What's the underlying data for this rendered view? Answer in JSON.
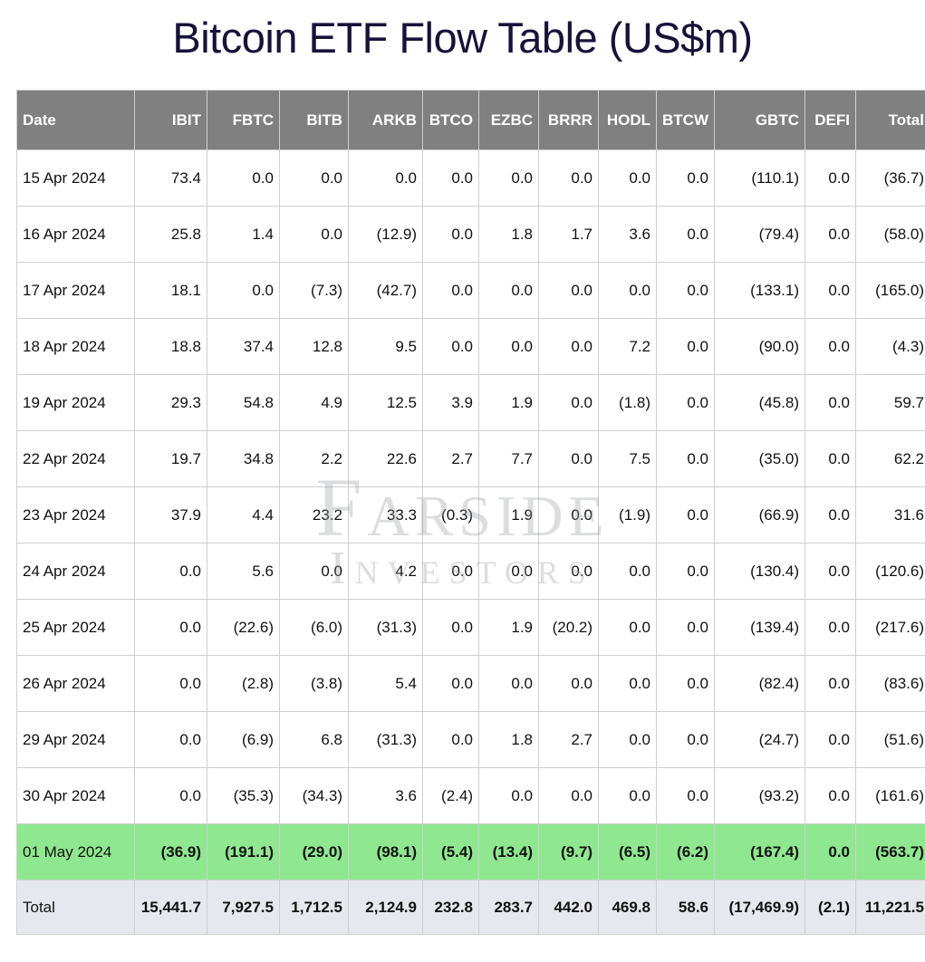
{
  "title": "Bitcoin ETF Flow Table (US$m)",
  "watermark": {
    "line1": "Farside",
    "line2": "Investors"
  },
  "table": {
    "type": "table",
    "header_bg": "#808080",
    "header_fg": "#ffffff",
    "border_color": "#cfcfcf",
    "negative_color": "#e03a2e",
    "highlight_bg": "#8fe88f",
    "total_bg": "#e7e8ed",
    "columns": [
      "Date",
      "IBIT",
      "FBTC",
      "BITB",
      "ARKB",
      "BTCO",
      "EZBC",
      "BRRR",
      "HODL",
      "BTCW",
      "GBTC",
      "DEFI",
      "Total"
    ],
    "rows": [
      {
        "date": "15 Apr 2024",
        "cells": [
          "73.4",
          "0.0",
          "0.0",
          "0.0",
          "0.0",
          "0.0",
          "0.0",
          "0.0",
          "0.0",
          "(110.1)",
          "0.0",
          "(36.7)"
        ]
      },
      {
        "date": "16 Apr 2024",
        "cells": [
          "25.8",
          "1.4",
          "0.0",
          "(12.9)",
          "0.0",
          "1.8",
          "1.7",
          "3.6",
          "0.0",
          "(79.4)",
          "0.0",
          "(58.0)"
        ]
      },
      {
        "date": "17 Apr 2024",
        "cells": [
          "18.1",
          "0.0",
          "(7.3)",
          "(42.7)",
          "0.0",
          "0.0",
          "0.0",
          "0.0",
          "0.0",
          "(133.1)",
          "0.0",
          "(165.0)"
        ]
      },
      {
        "date": "18 Apr 2024",
        "cells": [
          "18.8",
          "37.4",
          "12.8",
          "9.5",
          "0.0",
          "0.0",
          "0.0",
          "7.2",
          "0.0",
          "(90.0)",
          "0.0",
          "(4.3)"
        ]
      },
      {
        "date": "19 Apr 2024",
        "cells": [
          "29.3",
          "54.8",
          "4.9",
          "12.5",
          "3.9",
          "1.9",
          "0.0",
          "(1.8)",
          "0.0",
          "(45.8)",
          "0.0",
          "59.7"
        ]
      },
      {
        "date": "22 Apr 2024",
        "cells": [
          "19.7",
          "34.8",
          "2.2",
          "22.6",
          "2.7",
          "7.7",
          "0.0",
          "7.5",
          "0.0",
          "(35.0)",
          "0.0",
          "62.2"
        ]
      },
      {
        "date": "23 Apr 2024",
        "cells": [
          "37.9",
          "4.4",
          "23.2",
          "33.3",
          "(0.3)",
          "1.9",
          "0.0",
          "(1.9)",
          "0.0",
          "(66.9)",
          "0.0",
          "31.6"
        ]
      },
      {
        "date": "24 Apr 2024",
        "cells": [
          "0.0",
          "5.6",
          "0.0",
          "4.2",
          "0.0",
          "0.0",
          "0.0",
          "0.0",
          "0.0",
          "(130.4)",
          "0.0",
          "(120.6)"
        ]
      },
      {
        "date": "25 Apr 2024",
        "cells": [
          "0.0",
          "(22.6)",
          "(6.0)",
          "(31.3)",
          "0.0",
          "1.9",
          "(20.2)",
          "0.0",
          "0.0",
          "(139.4)",
          "0.0",
          "(217.6)"
        ]
      },
      {
        "date": "26 Apr 2024",
        "cells": [
          "0.0",
          "(2.8)",
          "(3.8)",
          "5.4",
          "0.0",
          "0.0",
          "0.0",
          "0.0",
          "0.0",
          "(82.4)",
          "0.0",
          "(83.6)"
        ]
      },
      {
        "date": "29 Apr 2024",
        "cells": [
          "0.0",
          "(6.9)",
          "6.8",
          "(31.3)",
          "0.0",
          "1.8",
          "2.7",
          "0.0",
          "0.0",
          "(24.7)",
          "0.0",
          "(51.6)"
        ]
      },
      {
        "date": "30 Apr 2024",
        "cells": [
          "0.0",
          "(35.3)",
          "(34.3)",
          "3.6",
          "(2.4)",
          "0.0",
          "0.0",
          "0.0",
          "0.0",
          "(93.2)",
          "0.0",
          "(161.6)"
        ]
      },
      {
        "date": "01 May 2024",
        "highlight": true,
        "cells": [
          "(36.9)",
          "(191.1)",
          "(29.0)",
          "(98.1)",
          "(5.4)",
          "(13.4)",
          "(9.7)",
          "(6.5)",
          "(6.2)",
          "(167.4)",
          "0.0",
          "(563.7)"
        ]
      }
    ],
    "total_row": {
      "date": "Total",
      "cells": [
        "15,441.7",
        "7,927.5",
        "1,712.5",
        "2,124.9",
        "232.8",
        "283.7",
        "442.0",
        "469.8",
        "58.6",
        "(17,469.9)",
        "(2.1)",
        "11,221.5"
      ]
    }
  }
}
